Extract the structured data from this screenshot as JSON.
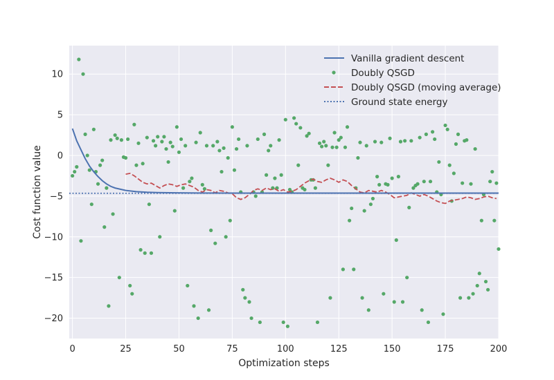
{
  "chart_data": {
    "type": "line",
    "title": "",
    "xlabel": "Optimization steps",
    "ylabel": "Cost function value",
    "xlim": [
      -1.5,
      200
    ],
    "ylim": [
      -22.5,
      13.5
    ],
    "xticks": [
      0,
      25,
      50,
      75,
      100,
      125,
      150,
      175,
      200
    ],
    "yticks": [
      -20,
      -15,
      -10,
      -5,
      0,
      5,
      10
    ],
    "grid": true,
    "legend_position": "top-right",
    "colors": {
      "background": "#EAEAF2",
      "grid": "#FFFFFF",
      "vanilla": "#4C72B0",
      "qsgd": "#55A868",
      "moving_average": "#C44E52",
      "ground": "#4C72B0"
    },
    "legend": [
      {
        "key": "vanilla",
        "label": "Vanilla gradient descent"
      },
      {
        "key": "qsgd",
        "label": "Doubly QSGD"
      },
      {
        "key": "moving_average",
        "label": "Doubly QSGD (moving average)"
      },
      {
        "key": "ground",
        "label": "Ground state energy"
      }
    ],
    "series": [
      {
        "key": "vanilla",
        "kind": "line",
        "x": [
          0,
          2,
          4,
          6,
          8,
          10,
          12,
          14,
          16,
          18,
          20,
          25,
          30,
          35,
          40,
          50,
          60,
          80,
          100,
          125,
          150,
          175,
          200
        ],
        "y": [
          3.3,
          1.8,
          0.7,
          -0.4,
          -1.3,
          -2.0,
          -2.6,
          -3.1,
          -3.5,
          -3.8,
          -4.0,
          -4.3,
          -4.45,
          -4.52,
          -4.56,
          -4.6,
          -4.62,
          -4.63,
          -4.63,
          -4.63,
          -4.63,
          -4.63,
          -4.63
        ]
      },
      {
        "key": "qsgd",
        "kind": "scatter",
        "x": [
          0,
          1,
          2,
          3,
          4,
          5,
          6,
          7,
          8,
          9,
          10,
          11,
          12,
          13,
          14,
          15,
          16,
          17,
          18,
          19,
          20,
          21,
          22,
          23,
          24,
          25,
          26,
          27,
          28,
          29,
          30,
          31,
          32,
          33,
          34,
          35,
          36,
          37,
          38,
          39,
          40,
          41,
          42,
          43,
          44,
          45,
          46,
          47,
          48,
          49,
          50,
          51,
          52,
          53,
          54,
          55,
          56,
          57,
          58,
          59,
          60,
          61,
          62,
          63,
          64,
          65,
          66,
          67,
          68,
          69,
          70,
          71,
          72,
          73,
          74,
          75,
          76,
          77,
          78,
          79,
          80,
          81,
          82,
          83,
          84,
          85,
          86,
          87,
          88,
          89,
          90,
          91,
          92,
          93,
          94,
          95,
          96,
          97,
          98,
          99,
          100,
          101,
          102,
          103,
          104,
          105,
          106,
          107,
          108,
          109,
          110,
          111,
          112,
          113,
          114,
          115,
          116,
          117,
          118,
          119,
          120,
          121,
          122,
          123,
          124,
          125,
          126,
          127,
          128,
          129,
          130,
          131,
          132,
          133,
          134,
          135,
          136,
          137,
          138,
          139,
          140,
          141,
          142,
          143,
          144,
          145,
          146,
          147,
          148,
          149,
          150,
          151,
          152,
          153,
          154,
          155,
          156,
          157,
          158,
          159,
          160,
          161,
          162,
          163,
          164,
          165,
          166,
          167,
          168,
          169,
          170,
          171,
          172,
          173,
          174,
          175,
          176,
          177,
          178,
          179,
          180,
          181,
          182,
          183,
          184,
          185,
          186,
          187,
          188,
          189,
          190,
          191,
          192,
          193,
          194,
          195,
          196,
          197,
          198,
          199,
          200
        ],
        "y": [
          -2.5,
          -2.0,
          -1.4,
          11.8,
          -10.5,
          10.0,
          2.6,
          0.0,
          -1.8,
          -6.0,
          3.2,
          -2.0,
          -3.5,
          -1.2,
          -0.6,
          -8.8,
          -4.0,
          -18.5,
          1.9,
          -7.2,
          2.5,
          2.1,
          -15.0,
          1.9,
          -0.2,
          -0.3,
          2.0,
          -16.0,
          -17.0,
          3.8,
          -1.2,
          1.5,
          -11.6,
          -1.0,
          -12.0,
          2.2,
          -6.0,
          -12.0,
          1.8,
          1.2,
          2.3,
          -10.0,
          1.7,
          2.3,
          0.8,
          -0.8,
          1.6,
          1.1,
          -6.8,
          3.5,
          0.4,
          2.0,
          -4.0,
          1.2,
          -16.0,
          -3.2,
          -2.8,
          -18.5,
          1.6,
          -20.0,
          2.8,
          -3.6,
          -4.1,
          1.2,
          -19.0,
          -9.2,
          1.2,
          -10.8,
          1.7,
          0.6,
          -2.0,
          0.9,
          -10.0,
          -0.3,
          -8.0,
          3.5,
          -1.8,
          0.8,
          2.0,
          -4.5,
          -16.5,
          -17.5,
          1.2,
          -18.0,
          -20.0,
          -4.5,
          -5.0,
          2.0,
          -20.5,
          -4.5,
          2.6,
          -2.4,
          0.6,
          1.2,
          -4.0,
          -2.8,
          -4.0,
          1.9,
          -2.4,
          -20.5,
          4.4,
          -21.0,
          -4.2,
          -4.5,
          4.6,
          3.9,
          -1.2,
          3.4,
          -4.0,
          -4.2,
          2.4,
          2.7,
          -3.0,
          -3.0,
          -4.0,
          -20.5,
          1.5,
          1.1,
          1.7,
          1.2,
          -1.2,
          -17.5,
          1.0,
          2.8,
          1.0,
          1.9,
          2.2,
          -14.0,
          1.0,
          3.5,
          -8.0,
          -6.5,
          -14.0,
          -4.0,
          -0.3,
          1.6,
          -17.5,
          -6.8,
          1.2,
          -19.0,
          -6.0,
          -5.3,
          1.7,
          -2.6,
          -3.6,
          1.6,
          -17.0,
          -3.5,
          -3.6,
          2.1,
          -2.8,
          -18.0,
          -10.4,
          -2.6,
          1.7,
          -18.0,
          1.8,
          -15.0,
          -6.4,
          1.8,
          -4.0,
          -3.7,
          -3.5,
          2.2,
          -19.0,
          -3.2,
          2.6,
          -20.5,
          -3.2,
          2.9,
          2.0,
          -4.5,
          -0.8,
          -4.8,
          -19.5,
          3.7,
          3.2,
          -1.2,
          -5.6,
          -2.2,
          1.4,
          2.6,
          -17.5,
          -3.4,
          1.8,
          1.9,
          -17.5,
          -3.5,
          -17.0,
          0.8,
          -16.0,
          -14.5,
          -8.0,
          -4.8,
          -15.5,
          -16.5,
          -3.2,
          -2.0,
          -8.0,
          -3.4,
          -11.5
        ]
      },
      {
        "key": "moving_average",
        "kind": "line",
        "x": [
          25,
          27,
          29,
          31,
          33,
          35,
          37,
          39,
          41,
          43,
          45,
          47,
          49,
          51,
          53,
          55,
          57,
          59,
          61,
          63,
          65,
          67,
          69,
          71,
          73,
          75,
          77,
          79,
          81,
          83,
          85,
          87,
          89,
          91,
          93,
          95,
          97,
          99,
          101,
          103,
          105,
          107,
          109,
          111,
          113,
          115,
          117,
          119,
          121,
          123,
          125,
          127,
          129,
          131,
          133,
          135,
          137,
          139,
          141,
          143,
          145,
          147,
          149,
          151,
          153,
          155,
          157,
          159,
          161,
          163,
          165,
          167,
          169,
          171,
          173,
          175,
          177,
          179,
          181,
          183,
          185,
          187,
          189,
          191,
          193,
          195,
          197,
          199
        ],
        "y": [
          -2.3,
          -2.2,
          -2.5,
          -2.9,
          -3.3,
          -3.5,
          -3.4,
          -3.7,
          -4.0,
          -3.7,
          -3.5,
          -3.6,
          -3.8,
          -3.6,
          -3.5,
          -3.7,
          -3.9,
          -4.3,
          -4.5,
          -4.2,
          -4.3,
          -4.6,
          -4.3,
          -4.4,
          -4.6,
          -4.7,
          -5.2,
          -5.4,
          -5.2,
          -4.8,
          -4.3,
          -4.1,
          -4.3,
          -4.0,
          -4.2,
          -4.1,
          -4.4,
          -4.2,
          -4.5,
          -4.4,
          -4.2,
          -3.8,
          -3.4,
          -3.1,
          -2.9,
          -3.2,
          -3.3,
          -3.0,
          -2.8,
          -3.0,
          -3.3,
          -3.0,
          -3.2,
          -3.7,
          -4.1,
          -4.5,
          -4.6,
          -4.3,
          -4.4,
          -4.5,
          -4.3,
          -4.5,
          -4.8,
          -5.2,
          -5.1,
          -5.0,
          -4.9,
          -4.6,
          -4.8,
          -5.0,
          -4.8,
          -5.0,
          -5.3,
          -5.6,
          -5.8,
          -5.9,
          -5.6,
          -5.5,
          -5.4,
          -5.3,
          -5.1,
          -5.2,
          -5.4,
          -5.3,
          -5.1,
          -5.0,
          -5.2,
          -5.3
        ]
      },
      {
        "key": "ground",
        "kind": "line",
        "x": [
          -1.5,
          200
        ],
        "y": [
          -4.65,
          -4.65
        ]
      }
    ]
  }
}
